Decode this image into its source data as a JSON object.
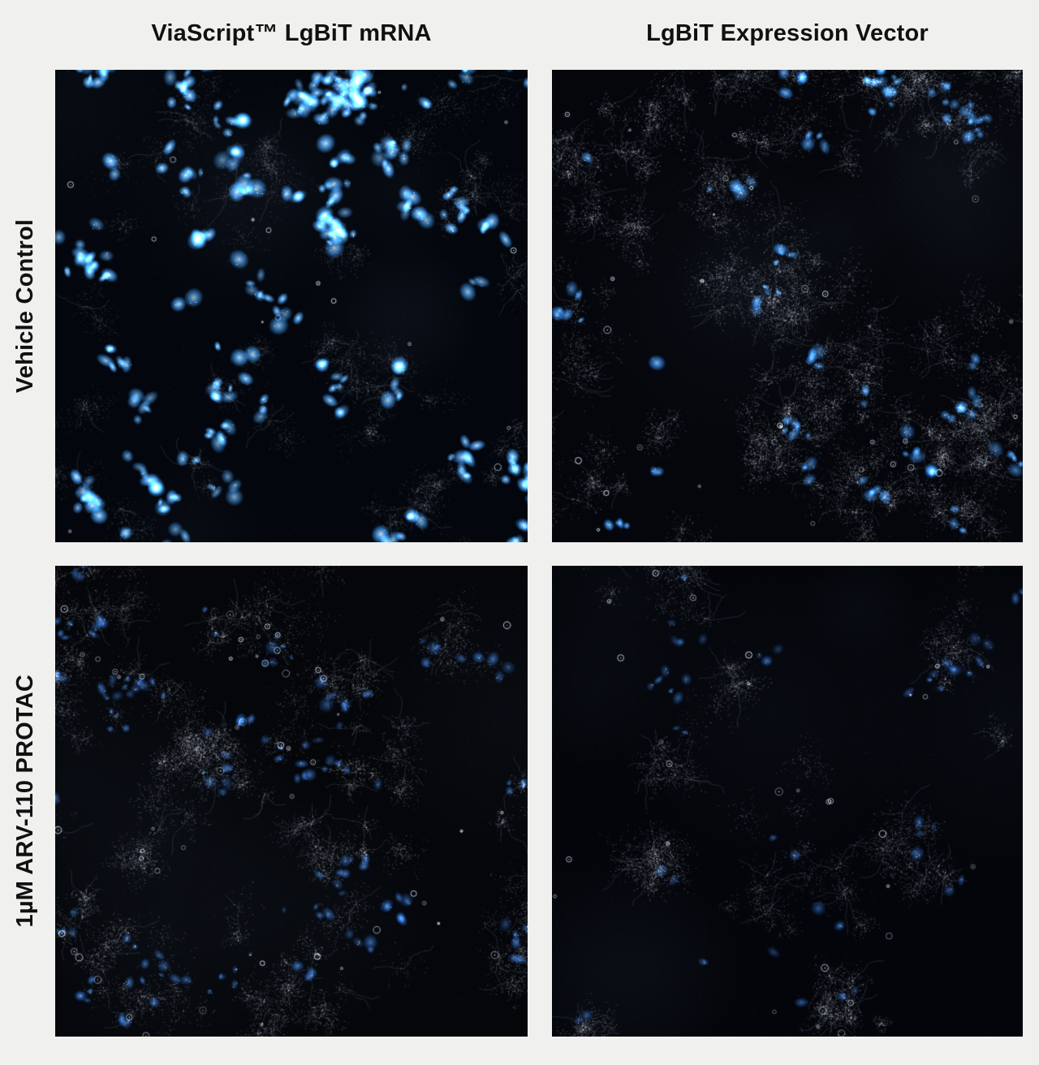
{
  "figure": {
    "background": "#f0f0ee",
    "text_color": "#111111",
    "column_headers": [
      {
        "label": "ViaScript™ LgBiT mRNA"
      },
      {
        "label": "LgBiT Expression Vector"
      }
    ],
    "row_labels": [
      {
        "label": "Vehicle Control"
      },
      {
        "label": "1µM ARV-110 PROTAC"
      }
    ],
    "panels": [
      {
        "id": "viascript-mrna-vehicle-control",
        "column": "ViaScript™ LgBiT mRNA",
        "row": "Vehicle Control",
        "description": "dense bright blue fluorescent nuclei with faint gray cell outlines",
        "render": {
          "seed": 7,
          "bg": "#03060c",
          "haze": 7,
          "noise": 750,
          "clusters": 46,
          "spread": 100,
          "grayCells": 130,
          "grayAlpha": 0.22,
          "strands": 0.3,
          "blueCells": 380,
          "clump": 6,
          "blueSize": 1.15,
          "blueLo": 0.5,
          "blueHi": 1.0,
          "coreColor": "205,240,255",
          "midColor": "62,152,238",
          "rings": 16
        }
      },
      {
        "id": "vector-vehicle-control",
        "column": "LgBiT Expression Vector",
        "row": "Vehicle Control",
        "description": "dense gray speckled cell sheets with scattered medium-bright blue nuclei",
        "render": {
          "seed": 21,
          "bg": "#04060b",
          "haze": 6,
          "noise": 650,
          "clusters": 26,
          "spread": 125,
          "grayCells": 310,
          "grayAlpha": 0.42,
          "strands": 0.5,
          "blueCells": 120,
          "clump": 5,
          "blueSize": 1.0,
          "blueLo": 0.45,
          "blueHi": 0.9,
          "coreColor": "150,210,250",
          "midColor": "45,130,228",
          "rings": 32
        }
      },
      {
        "id": "viascript-mrna-protac",
        "column": "ViaScript™ LgBiT mRNA",
        "row": "1µM ARV-110 PROTAC",
        "description": "clustered gray cells with dim blue nuclei and bright white granules",
        "render": {
          "seed": 33,
          "bg": "#04060a",
          "haze": 5,
          "noise": 820,
          "clusters": 32,
          "spread": 78,
          "grayCells": 200,
          "grayAlpha": 0.38,
          "strands": 0.45,
          "blueCells": 155,
          "clump": 4,
          "blueSize": 0.9,
          "blueLo": 0.3,
          "blueHi": 0.65,
          "coreColor": "120,180,240",
          "midColor": "36,98,195",
          "rings": 58
        }
      },
      {
        "id": "vector-protac",
        "column": "LgBiT Expression Vector",
        "row": "1µM ARV-110 PROTAC",
        "description": "sparse faint gray star-shaped cells, very few dim blue nuclei",
        "render": {
          "seed": 51,
          "bg": "#03050a",
          "haze": 7,
          "noise": 680,
          "clusters": 21,
          "spread": 88,
          "grayCells": 125,
          "grayAlpha": 0.34,
          "strands": 0.4,
          "blueCells": 55,
          "clump": 3,
          "blueSize": 0.9,
          "blueLo": 0.28,
          "blueHi": 0.6,
          "coreColor": "110,170,235",
          "midColor": "32,92,185",
          "rings": 30
        }
      }
    ]
  }
}
